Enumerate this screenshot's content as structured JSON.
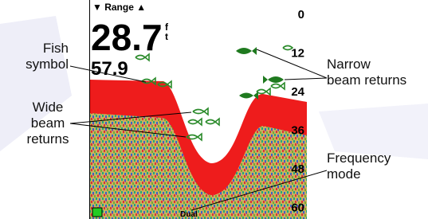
{
  "screen": {
    "range_label": "▼ Range ▲",
    "depth": "28.7",
    "depth_unit": [
      "f",
      "t"
    ],
    "temperature": "57.9",
    "scale": [
      "0",
      "12",
      "24",
      "36",
      "48",
      "60"
    ],
    "mode": "Dual"
  },
  "callouts": [
    {
      "lines": [
        "Fish",
        "symbol"
      ]
    },
    {
      "lines": [
        "Wide",
        "beam",
        "returns"
      ]
    },
    {
      "lines": [
        "Narrow",
        "beam returns"
      ]
    },
    {
      "lines": [
        "Frequency",
        "mode"
      ]
    }
  ]
}
